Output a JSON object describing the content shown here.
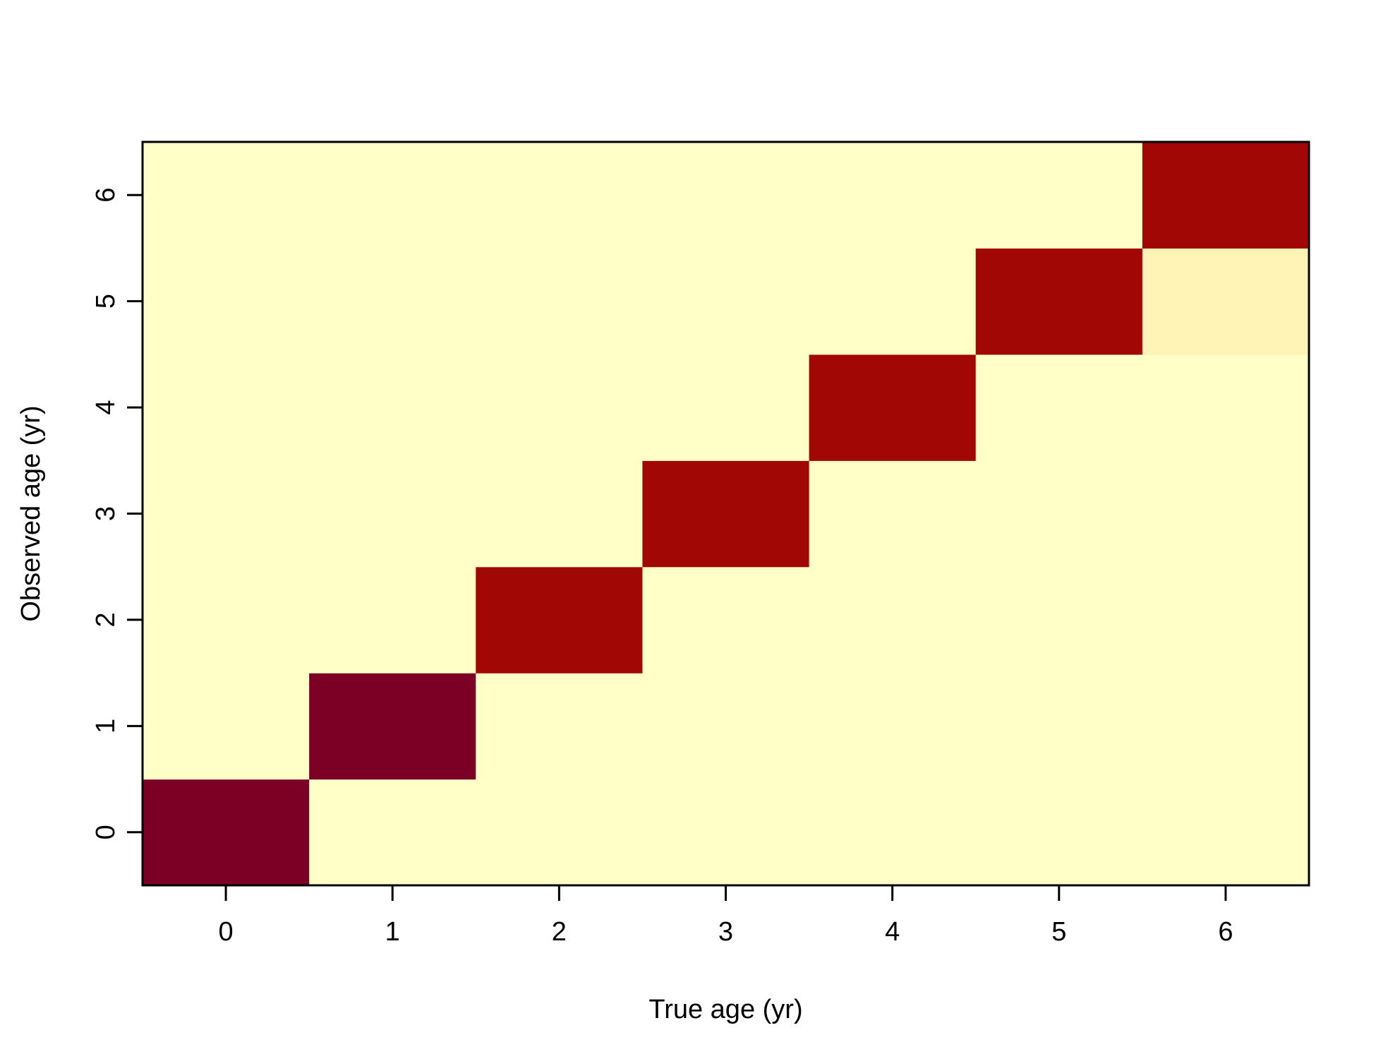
{
  "chart_data": {
    "type": "heatmap",
    "xlabel": "True age (yr)",
    "ylabel": "Observed age (yr)",
    "x_categories": [
      "0",
      "1",
      "2",
      "3",
      "4",
      "5",
      "6"
    ],
    "y_categories": [
      "0",
      "1",
      "2",
      "3",
      "4",
      "5",
      "6"
    ],
    "xlim": [
      -0.5,
      6.5
    ],
    "ylim": [
      -0.5,
      6.5
    ],
    "legend": "none",
    "grid": false,
    "colors": {
      "low": "#FFFFC8",
      "very_low": "#FFF3B5",
      "high": "#A00705",
      "max": "#7C0026",
      "frame": "#000000"
    },
    "cells": [
      {
        "x": 0,
        "y": 0,
        "value": 1.0
      },
      {
        "x": 1,
        "y": 1,
        "value": 1.0
      },
      {
        "x": 2,
        "y": 2,
        "value": 0.92
      },
      {
        "x": 3,
        "y": 3,
        "value": 0.92
      },
      {
        "x": 4,
        "y": 4,
        "value": 0.92
      },
      {
        "x": 5,
        "y": 5,
        "value": 0.92
      },
      {
        "x": 6,
        "y": 6,
        "value": 0.92
      },
      {
        "x": 6,
        "y": 5,
        "value": 0.08
      }
    ]
  }
}
